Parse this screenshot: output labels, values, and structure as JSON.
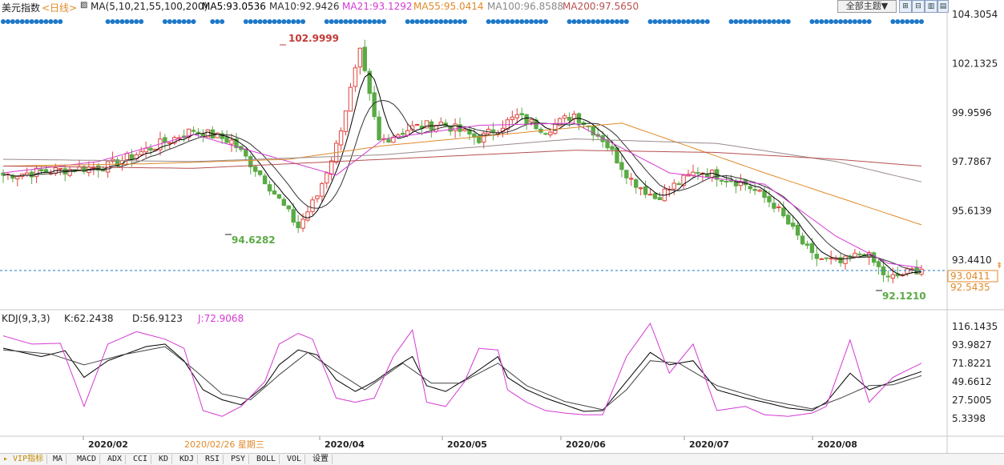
{
  "header": {
    "title": "美元指数",
    "period": "<日线>",
    "ma_label": "MA(5,10,21,55,100,200)",
    "ma5": "MA5:93.0536",
    "ma10": "MA10:92.9426",
    "ma21": "MA21:93.1292",
    "ma55": "MA55:95.0414",
    "ma100": "MA100:96.8588",
    "ma200": "MA200:97.5650",
    "theme_button": "全部主题▼"
  },
  "colors": {
    "up": "#e0443e",
    "down": "#5aaa45",
    "ma5": "#000000",
    "ma10": "#333333",
    "ma21": "#d43ad4",
    "ma55": "#e08a2a",
    "ma100": "#9a8a8a",
    "ma200": "#b85050",
    "k": "#000000",
    "d": "#444444",
    "j": "#d43ad4",
    "dots": "#1e78c8",
    "accent": "#e08a2a"
  },
  "chart_data": [
    {
      "type": "candlestick",
      "title": "美元指数",
      "y_ticks": [
        "104.3054",
        "102.1325",
        "99.9596",
        "97.7867",
        "95.6139",
        "93.4410"
      ],
      "ylim": [
        92.0,
        104.4
      ],
      "current_price": "93.0411",
      "price_label_2": "92.5435",
      "max_annotation": "102.9999",
      "min_annotation_1": "94.6282",
      "min_annotation_2": "92.1210",
      "x_labels": [
        "2020/02",
        "2020/04",
        "2020/05",
        "2020/06",
        "2020/07",
        "2020/08"
      ],
      "crosshair_date": "2020/02/26 星期三",
      "close_keypoints": [
        [
          0,
          97.2
        ],
        [
          22,
          97.6
        ],
        [
          40,
          99.2
        ],
        [
          48,
          98.7
        ],
        [
          55,
          97.0
        ],
        [
          62,
          94.9
        ],
        [
          66,
          96.3
        ],
        [
          70,
          98.5
        ],
        [
          75,
          102.6
        ],
        [
          79,
          98.7
        ],
        [
          86,
          99.3
        ],
        [
          92,
          99.5
        ],
        [
          100,
          98.8
        ],
        [
          108,
          99.8
        ],
        [
          114,
          99.2
        ],
        [
          120,
          99.9
        ],
        [
          126,
          98.8
        ],
        [
          132,
          97.0
        ],
        [
          137,
          96.2
        ],
        [
          146,
          97.4
        ],
        [
          150,
          97.2
        ],
        [
          156,
          96.8
        ],
        [
          162,
          95.9
        ],
        [
          170,
          93.6
        ],
        [
          176,
          93.3
        ],
        [
          181,
          93.8
        ],
        [
          186,
          92.6
        ],
        [
          193,
          93.1
        ]
      ],
      "ma_keypoints": {
        "ma21": [
          [
            0,
            97.3
          ],
          [
            20,
            97.8
          ],
          [
            40,
            99.0
          ],
          [
            60,
            97.8
          ],
          [
            70,
            97.2
          ],
          [
            80,
            98.8
          ],
          [
            100,
            99.4
          ],
          [
            120,
            99.5
          ],
          [
            140,
            97.3
          ],
          [
            160,
            96.8
          ],
          [
            175,
            94.5
          ],
          [
            186,
            93.3
          ],
          [
            193,
            93.1
          ]
        ],
        "ma55": [
          [
            0,
            97.6
          ],
          [
            30,
            97.7
          ],
          [
            60,
            97.9
          ],
          [
            80,
            98.5
          ],
          [
            110,
            99.1
          ],
          [
            130,
            99.5
          ],
          [
            160,
            97.3
          ],
          [
            193,
            95.0
          ]
        ],
        "ma100": [
          [
            0,
            97.9
          ],
          [
            40,
            97.8
          ],
          [
            80,
            98.1
          ],
          [
            120,
            98.8
          ],
          [
            150,
            98.6
          ],
          [
            175,
            97.8
          ],
          [
            193,
            96.9
          ]
        ],
        "ma200": [
          [
            0,
            97.6
          ],
          [
            40,
            97.5
          ],
          [
            80,
            97.9
          ],
          [
            120,
            98.3
          ],
          [
            150,
            98.2
          ],
          [
            175,
            97.9
          ],
          [
            193,
            97.6
          ]
        ]
      }
    },
    {
      "type": "line",
      "title": "KDJ(9,3,3)",
      "k_label": "K:62.2438",
      "d_label": "D:56.9123",
      "j_label": "J:72.9068",
      "y_ticks": [
        "116.1435",
        "93.9827",
        "71.8221",
        "49.6612",
        "27.5005",
        "5.3398"
      ],
      "ylim": [
        0,
        125
      ],
      "series": [
        {
          "name": "K",
          "keypoints": [
            [
              0,
              90
            ],
            [
              8,
              80
            ],
            [
              13,
              87
            ],
            [
              17,
              55
            ],
            [
              22,
              75
            ],
            [
              30,
              92
            ],
            [
              34,
              95
            ],
            [
              38,
              75
            ],
            [
              42,
              40
            ],
            [
              46,
              28
            ],
            [
              50,
              22
            ],
            [
              55,
              45
            ],
            [
              58,
              70
            ],
            [
              62,
              88
            ],
            [
              66,
              82
            ],
            [
              70,
              52
            ],
            [
              74,
              38
            ],
            [
              78,
              50
            ],
            [
              82,
              66
            ],
            [
              86,
              80
            ],
            [
              89,
              45
            ],
            [
              93,
              38
            ],
            [
              97,
              52
            ],
            [
              102,
              72
            ],
            [
              104,
              80
            ],
            [
              106,
              55
            ],
            [
              110,
              40
            ],
            [
              114,
              30
            ],
            [
              118,
              22
            ],
            [
              122,
              14
            ],
            [
              126,
              15
            ],
            [
              131,
              50
            ],
            [
              136,
              85
            ],
            [
              140,
              70
            ],
            [
              145,
              75
            ],
            [
              150,
              40
            ],
            [
              156,
              30
            ],
            [
              160,
              25
            ],
            [
              165,
              18
            ],
            [
              170,
              15
            ],
            [
              173,
              25
            ],
            [
              178,
              60
            ],
            [
              182,
              40
            ],
            [
              187,
              50
            ],
            [
              193,
              62
            ]
          ]
        },
        {
          "name": "D",
          "keypoints": [
            [
              0,
              88
            ],
            [
              10,
              83
            ],
            [
              17,
              70
            ],
            [
              25,
              82
            ],
            [
              34,
              92
            ],
            [
              40,
              65
            ],
            [
              46,
              35
            ],
            [
              52,
              28
            ],
            [
              58,
              58
            ],
            [
              64,
              85
            ],
            [
              70,
              62
            ],
            [
              76,
              40
            ],
            [
              84,
              72
            ],
            [
              90,
              48
            ],
            [
              96,
              48
            ],
            [
              104,
              72
            ],
            [
              110,
              45
            ],
            [
              118,
              26
            ],
            [
              126,
              16
            ],
            [
              131,
              40
            ],
            [
              136,
              75
            ],
            [
              142,
              72
            ],
            [
              150,
              45
            ],
            [
              160,
              28
            ],
            [
              170,
              17
            ],
            [
              176,
              30
            ],
            [
              182,
              45
            ],
            [
              187,
              46
            ],
            [
              193,
              57
            ]
          ]
        },
        {
          "name": "J",
          "keypoints": [
            [
              0,
              105
            ],
            [
              6,
              95
            ],
            [
              12,
              96
            ],
            [
              17,
              20
            ],
            [
              22,
              95
            ],
            [
              28,
              110
            ],
            [
              34,
              101
            ],
            [
              38,
              90
            ],
            [
              42,
              15
            ],
            [
              46,
              8
            ],
            [
              50,
              20
            ],
            [
              55,
              50
            ],
            [
              58,
              95
            ],
            [
              62,
              108
            ],
            [
              65,
              101
            ],
            [
              70,
              30
            ],
            [
              74,
              25
            ],
            [
              78,
              30
            ],
            [
              82,
              80
            ],
            [
              86,
              112
            ],
            [
              89,
              25
            ],
            [
              93,
              20
            ],
            [
              97,
              50
            ],
            [
              100,
              90
            ],
            [
              104,
              88
            ],
            [
              106,
              40
            ],
            [
              110,
              25
            ],
            [
              114,
              15
            ],
            [
              118,
              12
            ],
            [
              122,
              10
            ],
            [
              126,
              10
            ],
            [
              131,
              80
            ],
            [
              136,
              120
            ],
            [
              140,
              60
            ],
            [
              145,
              95
            ],
            [
              150,
              15
            ],
            [
              156,
              20
            ],
            [
              160,
              10
            ],
            [
              165,
              8
            ],
            [
              170,
              12
            ],
            [
              173,
              20
            ],
            [
              178,
              100
            ],
            [
              182,
              25
            ],
            [
              187,
              55
            ],
            [
              193,
              72
            ]
          ]
        }
      ]
    }
  ],
  "tabs": [
    "VIP指标",
    "MA",
    "MACD",
    "ADX",
    "CCI",
    "KD",
    "KDJ",
    "RSI",
    "PSY",
    "BOLL",
    "VOL",
    "设置"
  ]
}
